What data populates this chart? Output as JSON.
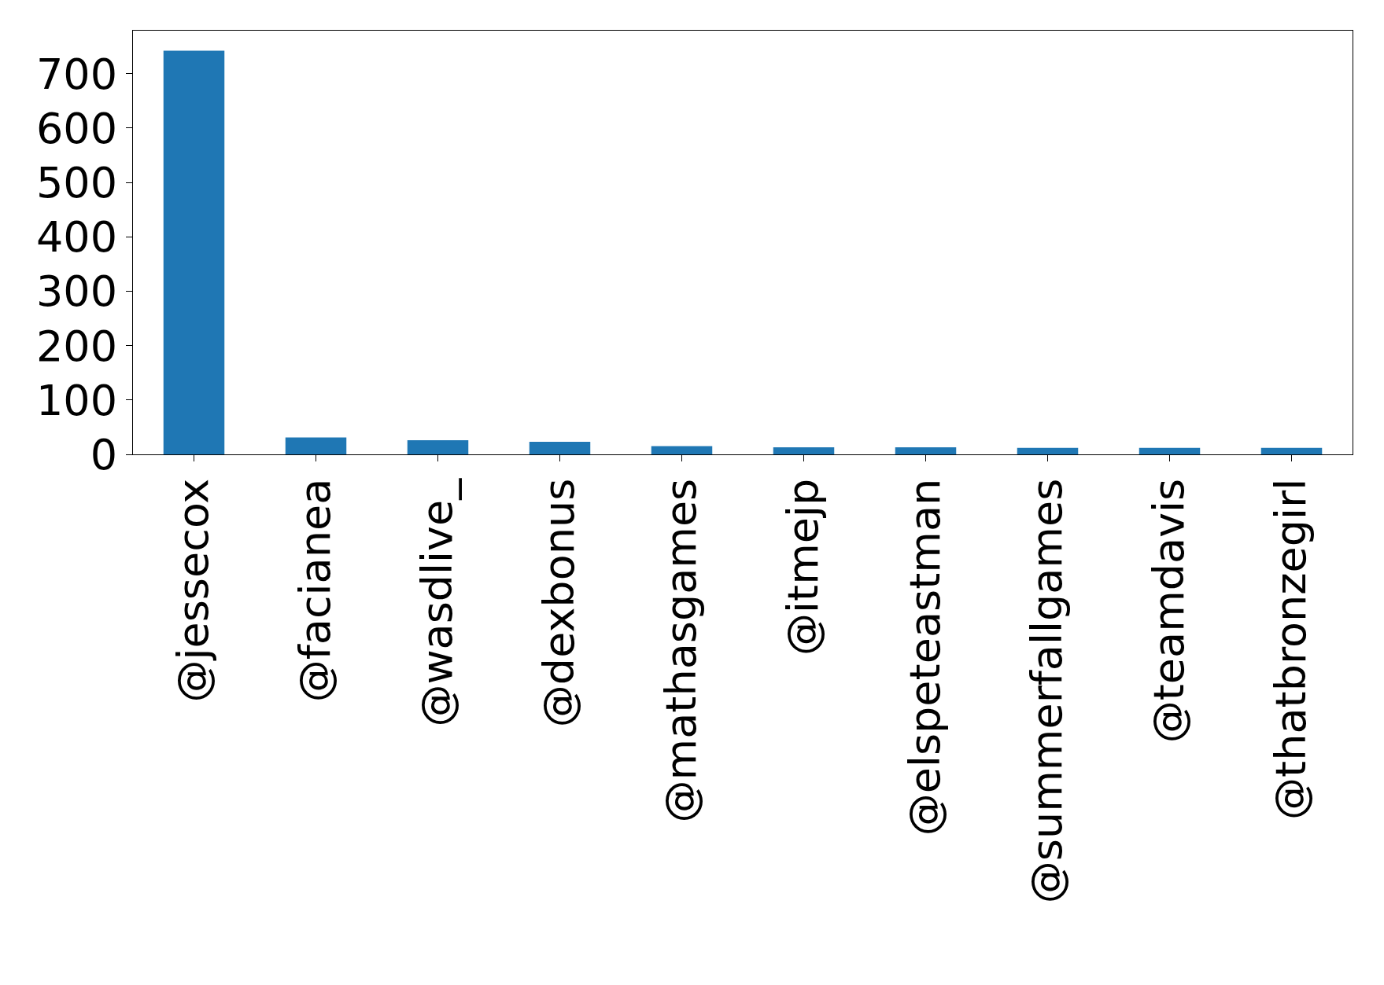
{
  "chart_data": {
    "type": "bar",
    "categories": [
      "@jessecox",
      "@facianea",
      "@wasdlive_",
      "@dexbonus",
      "@mathasgames",
      "@itmejp",
      "@elspeteastman",
      "@summerfallgames",
      "@teamdavis",
      "@thatbronzegirl"
    ],
    "values": [
      742,
      31,
      26,
      23,
      15,
      13,
      13,
      12,
      12,
      12
    ],
    "color": "#1f77b4",
    "ylim": [
      0,
      779
    ],
    "yticks": [
      0,
      100,
      200,
      300,
      400,
      500,
      600,
      700
    ],
    "grid": false,
    "legend": false
  }
}
